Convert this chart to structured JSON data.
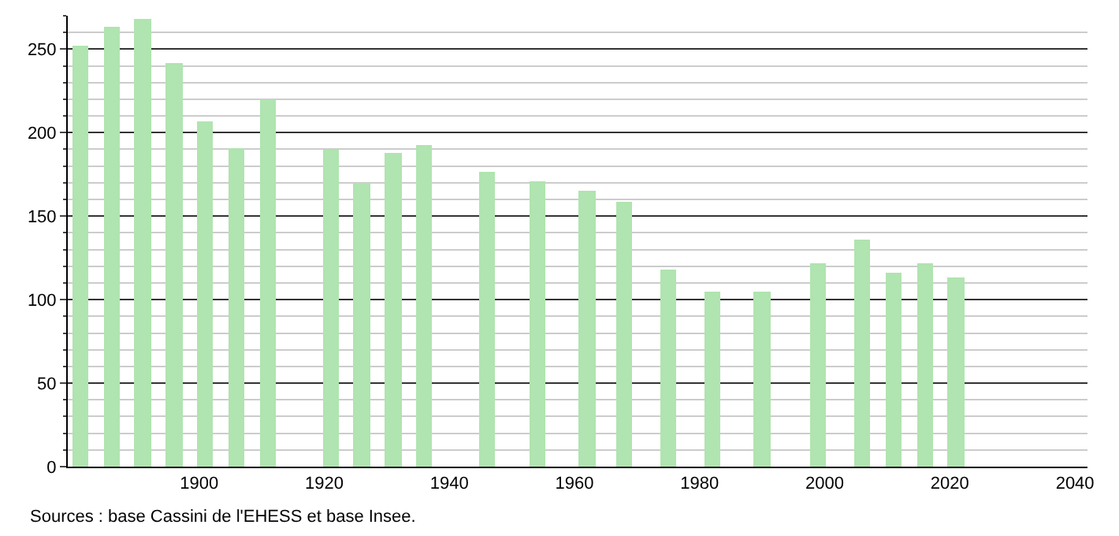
{
  "chart_data": {
    "type": "bar",
    "x": [
      1881,
      1886,
      1891,
      1896,
      1901,
      1906,
      1911,
      1921,
      1926,
      1931,
      1936,
      1946,
      1954,
      1962,
      1968,
      1975,
      1982,
      1990,
      1999,
      2006,
      2011,
      2016,
      2021
    ],
    "values": [
      252,
      263,
      268,
      242,
      207,
      191,
      220,
      190,
      170,
      188,
      193,
      177,
      171,
      165,
      159,
      118,
      105,
      105,
      122,
      136,
      116,
      122,
      113
    ],
    "color": "#b0e4b0",
    "xlim": [
      1879,
      2042
    ],
    "xticks": [
      1900,
      1920,
      1940,
      1960,
      1980,
      2000,
      2020,
      2040
    ],
    "ylim": [
      0,
      270
    ],
    "yticks": [
      0,
      50,
      100,
      150,
      200,
      250
    ],
    "grid": "y",
    "annotations": [
      "Sources : base Cassini de l'EHESS et base Insee."
    ]
  }
}
